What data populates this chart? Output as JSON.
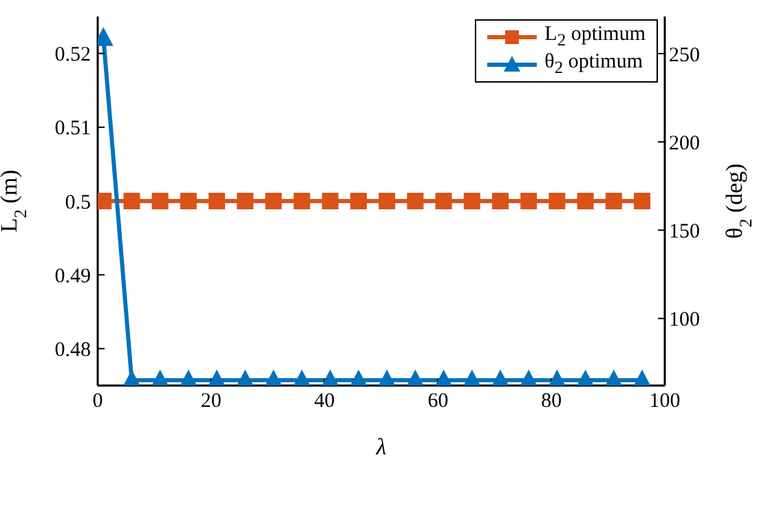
{
  "chart_data": {
    "type": "line",
    "xlabel": "λ",
    "ylabel": "L$_{2}$ (m)",
    "y2label": "θ$_{2}$ (deg)",
    "xlim": [
      0,
      100
    ],
    "xticks": [
      0,
      20,
      40,
      60,
      80,
      100
    ],
    "ylim": [
      0.475,
      0.525
    ],
    "yticks": [
      0.48,
      0.49,
      0.5,
      0.51,
      0.52
    ],
    "y2lim": [
      62,
      271
    ],
    "y2ticks": [
      100,
      150,
      200,
      250
    ],
    "legend": "top right",
    "grid": false,
    "series": [
      {
        "name": "L$_{2}$ optimum",
        "color": "#d95319",
        "marker": "square",
        "axis": "y",
        "x": [
          1,
          6,
          11,
          16,
          21,
          26,
          31,
          36,
          41,
          46,
          51,
          56,
          61,
          66,
          71,
          76,
          81,
          86,
          91,
          96
        ],
        "values": [
          0.5,
          0.5,
          0.5,
          0.5,
          0.5,
          0.5,
          0.5,
          0.5,
          0.5,
          0.5,
          0.5,
          0.5,
          0.5,
          0.5,
          0.5,
          0.5,
          0.5,
          0.5,
          0.5,
          0.5
        ]
      },
      {
        "name": "θ$_{2}$ optimum",
        "color": "#0072bd",
        "marker": "triangle",
        "axis": "y2",
        "x": [
          1,
          6,
          11,
          16,
          21,
          26,
          31,
          36,
          41,
          46,
          51,
          56,
          61,
          66,
          71,
          76,
          81,
          86,
          91,
          96
        ],
        "values": [
          259,
          65,
          65,
          65,
          65,
          65,
          65,
          65,
          65,
          65,
          65,
          65,
          65,
          65,
          65,
          65,
          65,
          65,
          65,
          65
        ]
      }
    ]
  }
}
